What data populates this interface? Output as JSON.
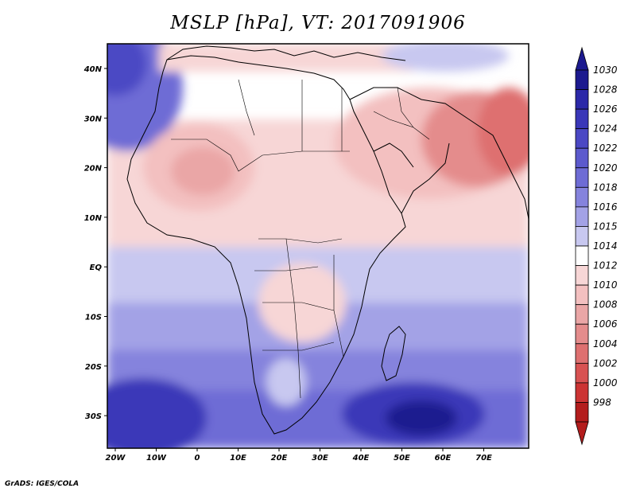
{
  "map": {
    "title": "MSLP [hPa], VT: 2017091906",
    "variable": "MSLP",
    "units": "hPa",
    "valid_time": "2017091906",
    "region": "Africa, Middle East and western Indian Ocean",
    "lon_labels": [
      "20W",
      "10W",
      "0",
      "10E",
      "20E",
      "30E",
      "40E",
      "50E",
      "60E",
      "70E"
    ],
    "lat_labels": [
      "40N",
      "30N",
      "20N",
      "10N",
      "EQ",
      "10S",
      "20S",
      "30S"
    ],
    "colorbar": {
      "levels": [
        "1030",
        "1028",
        "1026",
        "1024",
        "1022",
        "1020",
        "1018",
        "1016",
        "1015",
        "1014",
        "1012",
        "1010",
        "1008",
        "1006",
        "1004",
        "1002",
        "1000",
        "998"
      ],
      "colors": [
        "#1c1a8f",
        "#2b28a8",
        "#3a37b8",
        "#4b48c4",
        "#5c5acd",
        "#6e6cd5",
        "#8583dd",
        "#a3a2e6",
        "#c8c8f0",
        "#ffffff",
        "#f7d6d6",
        "#f3c0c0",
        "#eaa6a6",
        "#e48c8c",
        "#de7070",
        "#d85252",
        "#cc3434",
        "#b31d1d"
      ]
    },
    "credit": "GrADS: IGES/COLA"
  }
}
